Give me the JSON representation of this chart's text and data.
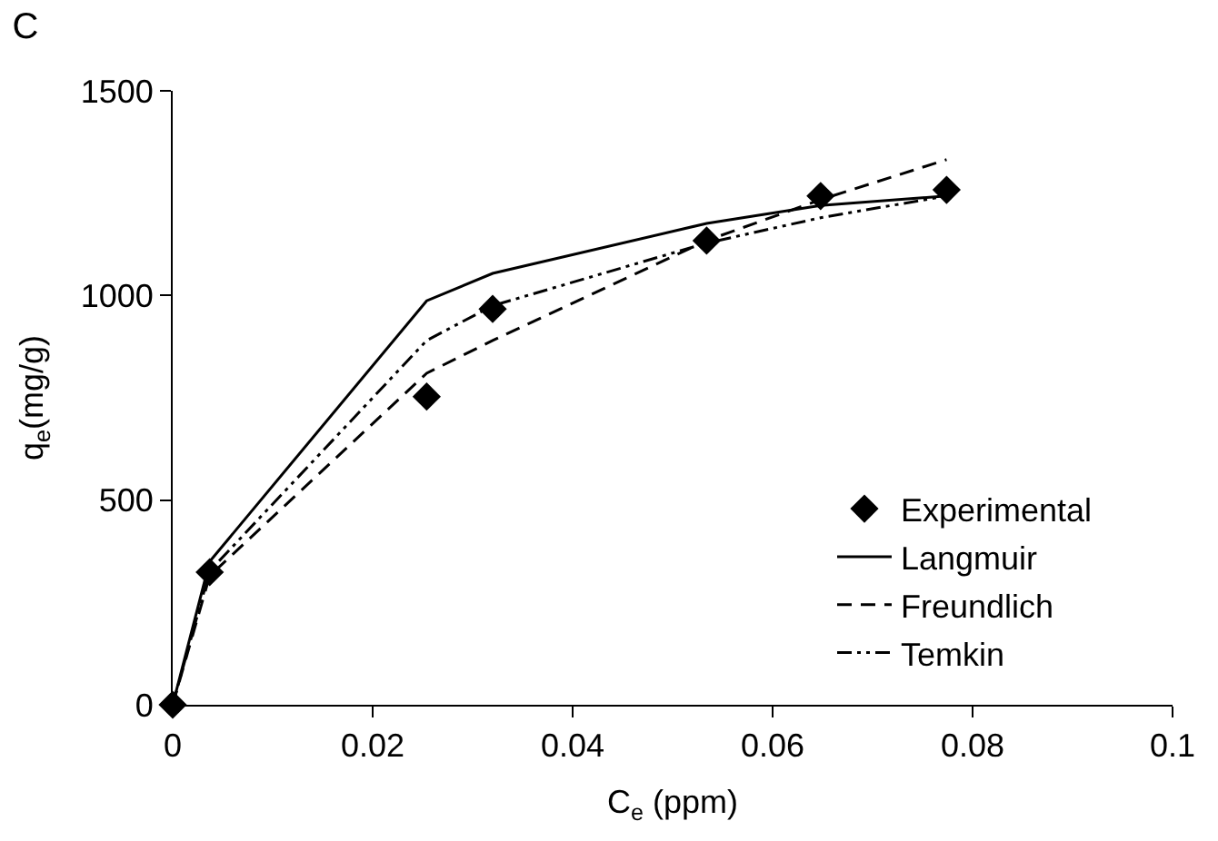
{
  "chart_data": {
    "type": "line",
    "title": "C",
    "xlabel": "C$_{e}$ (ppm)",
    "ylabel": "q$_{e}$(mg/g)",
    "x": [
      0,
      0.0037,
      0.0254,
      0.032,
      0.0534,
      0.0648,
      0.0774
    ],
    "series": [
      {
        "name": "Experimental",
        "type": "scatter",
        "marker": "diamond",
        "color": "#000000",
        "values": [
          0,
          324,
          753,
          967,
          1134,
          1243,
          1258
        ]
      },
      {
        "name": "Langmuir",
        "line_style": "solid",
        "color": "#000000",
        "values": [
          0,
          350,
          987,
          1054,
          1176,
          1220,
          1243
        ]
      },
      {
        "name": "Freundlich",
        "line_style": "dashed",
        "color": "#000000",
        "values": [
          0,
          315,
          810,
          890,
          1134,
          1234,
          1332
        ]
      },
      {
        "name": "Temkin",
        "line_style": "dashdot",
        "color": "#000000",
        "values": [
          0,
          327,
          890,
          975,
          1128,
          1190,
          1243
        ]
      }
    ],
    "xlim": [
      0,
      0.1
    ],
    "xticks": [
      0,
      0.02,
      0.04,
      0.06,
      0.08,
      0.1
    ],
    "ylim": [
      0,
      1500
    ],
    "yticks": [
      0,
      500,
      1000,
      1500
    ],
    "grid": false,
    "legend": "bottom right"
  }
}
